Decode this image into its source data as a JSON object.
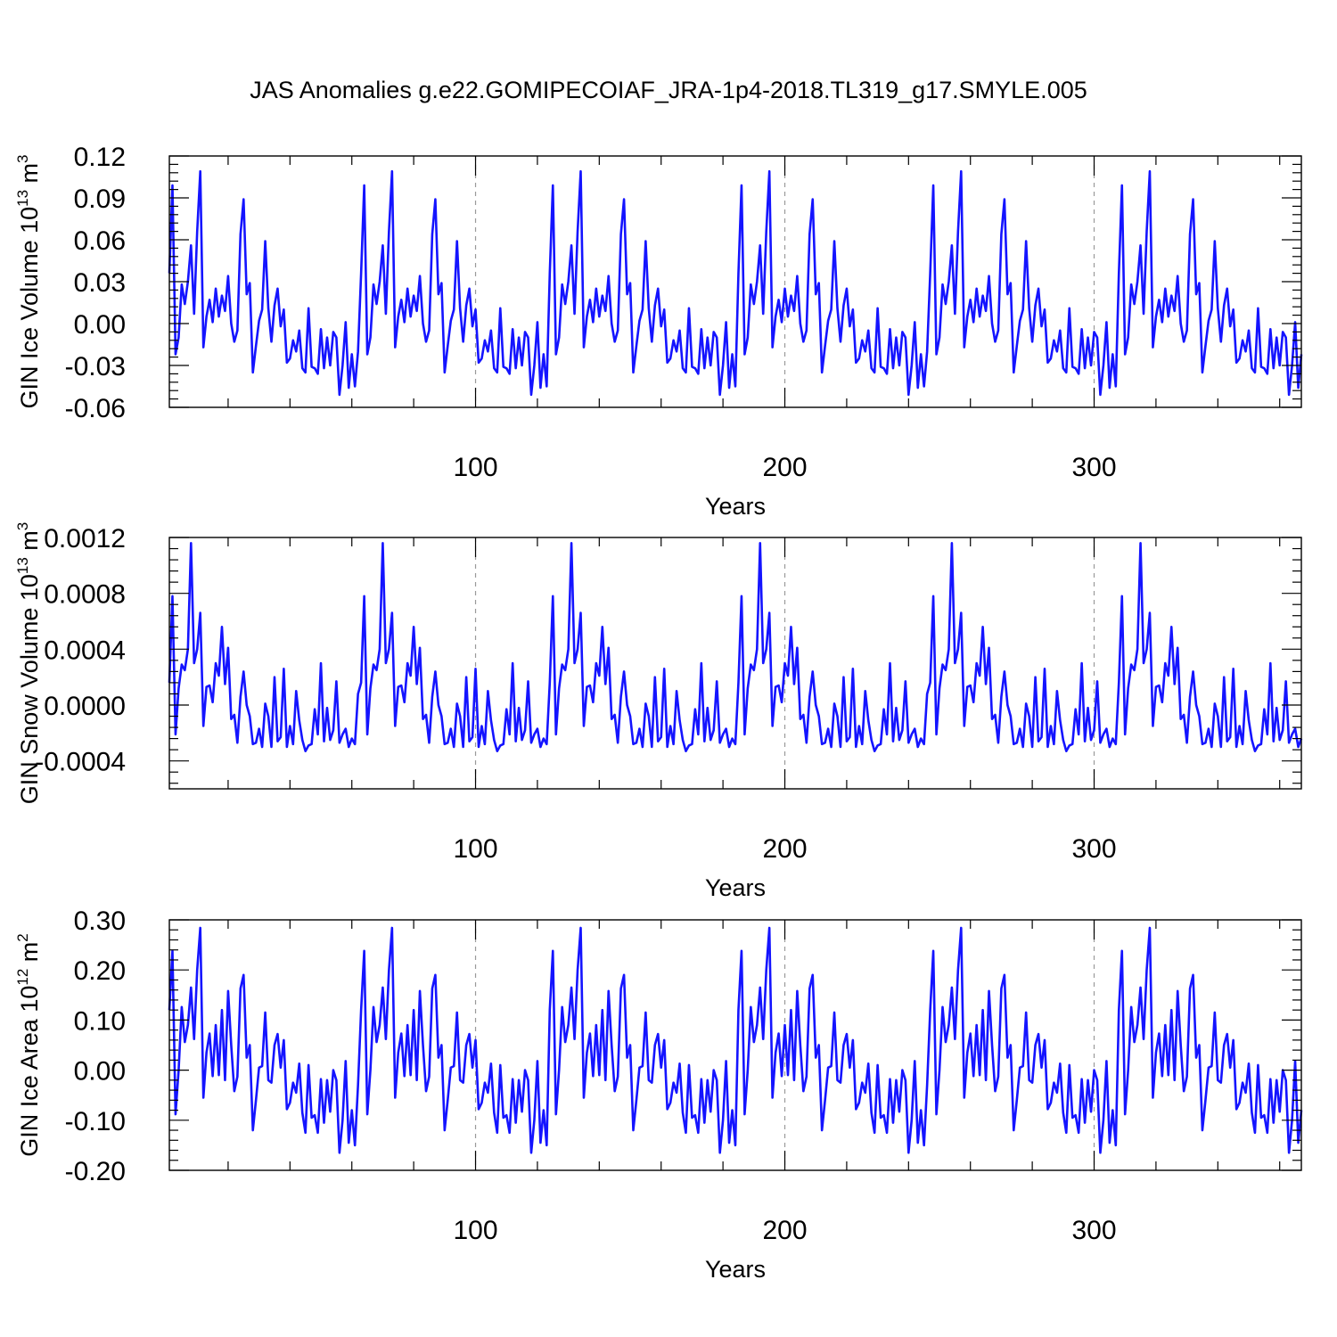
{
  "chart_data": {
    "title": "JAS Anomalies g.e22.GOMIPECOIAF_JRA-1p4-2018.TL319_g17.SMYLE.005",
    "line_color": "#1414ff",
    "panels": [
      {
        "type": "line",
        "ylabel": "GIN Ice Volume 10",
        "ylabel_sup": "13",
        "ylabel_unit": " m",
        "ylabel_unit_sup": "3",
        "xlabel": "Years",
        "xlim": [
          1,
          367
        ],
        "ylim": [
          -0.06,
          0.12
        ],
        "xticks": [
          "100",
          "200",
          "300"
        ],
        "yticks": [
          "-0.06",
          "-0.03",
          "0.00",
          "0.03",
          "0.06",
          "0.09",
          "0.12"
        ],
        "cycle_length": 61.3,
        "y": [
          0.036,
          0.099,
          -0.022,
          -0.01,
          0.028,
          0.014,
          0.03,
          0.056,
          0.007,
          0.066,
          0.109,
          -0.017,
          0.005,
          0.017,
          0.001,
          0.025,
          0.005,
          0.02,
          0.009,
          0.034,
          0.0,
          -0.013,
          -0.005,
          0.064,
          0.089,
          0.021,
          0.029,
          -0.035,
          -0.016,
          0.002,
          0.01,
          0.059,
          0.011,
          -0.013,
          0.013,
          0.025,
          -0.002,
          0.01,
          -0.028,
          -0.025,
          -0.012,
          -0.02,
          -0.005,
          -0.032,
          -0.035,
          0.011,
          -0.031,
          -0.032,
          -0.036,
          -0.004,
          -0.032,
          -0.01,
          -0.03,
          -0.006,
          -0.01,
          -0.051,
          -0.03,
          0.001,
          -0.046,
          -0.022,
          -0.045,
          -0.02,
          0.014
        ]
      },
      {
        "type": "line",
        "ylabel": "GIN Snow Volume 10",
        "ylabel_sup": "13",
        "ylabel_unit": " m",
        "ylabel_unit_sup": "3",
        "xlabel": "Years",
        "xlim": [
          1,
          367
        ],
        "ylim": [
          -0.0006,
          0.0012
        ],
        "xticks": [
          "100",
          "200",
          "300"
        ],
        "yticks": [
          "-0.0004",
          "0.0000",
          "0.0004",
          "0.0008",
          "0.0012"
        ],
        "cycle_length": 61.3,
        "y": [
          0.00016,
          0.00078,
          -0.00021,
          0.00012,
          0.00029,
          0.00025,
          0.0004,
          0.00116,
          0.0003,
          0.0004,
          0.00066,
          -0.00015,
          0.00013,
          0.00014,
          2e-05,
          0.0003,
          0.00021,
          0.00056,
          0.00015,
          0.00041,
          -0.0001,
          -7e-05,
          -0.00027,
          6e-05,
          0.00024,
          0.0,
          -8e-05,
          -0.00028,
          -0.00027,
          -0.00017,
          -0.0003,
          1e-05,
          -8e-05,
          -0.0003,
          0.0002,
          -0.00026,
          -0.00023,
          0.00026,
          -0.0003,
          -0.00015,
          -0.00028,
          0.0001,
          -0.00011,
          -0.00025,
          -0.00033,
          -0.00029,
          -0.00028,
          -3e-05,
          -0.00021,
          0.0003,
          -0.00026,
          -2e-05,
          -0.00025,
          -0.00018,
          0.00017,
          -0.00027,
          -0.00021,
          -0.00017,
          -0.0003,
          -0.00024,
          -0.00028,
          8e-05,
          0.00078
        ]
      },
      {
        "type": "line",
        "ylabel": "GIN Ice Area 10",
        "ylabel_sup": "12",
        "ylabel_unit": " m",
        "ylabel_unit_sup": "2",
        "xlabel": "Years",
        "xlim": [
          1,
          367
        ],
        "ylim": [
          -0.2,
          0.3
        ],
        "xticks": [
          "100",
          "200",
          "300"
        ],
        "yticks": [
          "-0.20",
          "-0.10",
          "0.00",
          "0.10",
          "0.20",
          "0.30"
        ],
        "cycle_length": 61.3,
        "y": [
          0.12,
          0.238,
          -0.088,
          0.0,
          0.126,
          0.056,
          0.09,
          0.165,
          0.062,
          0.2,
          0.284,
          -0.055,
          0.035,
          0.073,
          -0.012,
          0.09,
          -0.01,
          0.12,
          -0.02,
          0.158,
          0.05,
          -0.042,
          -0.013,
          0.163,
          0.19,
          0.025,
          0.05,
          -0.12,
          -0.06,
          0.005,
          0.008,
          0.115,
          -0.02,
          -0.025,
          0.05,
          0.072,
          0.005,
          0.06,
          -0.078,
          -0.065,
          -0.025,
          -0.045,
          0.013,
          -0.085,
          -0.125,
          0.01,
          -0.095,
          -0.09,
          -0.125,
          -0.018,
          -0.105,
          -0.02,
          -0.083,
          0.0,
          -0.02,
          -0.165,
          -0.1,
          0.018,
          -0.145,
          -0.08,
          -0.15,
          -0.03,
          0.11
        ]
      }
    ]
  }
}
